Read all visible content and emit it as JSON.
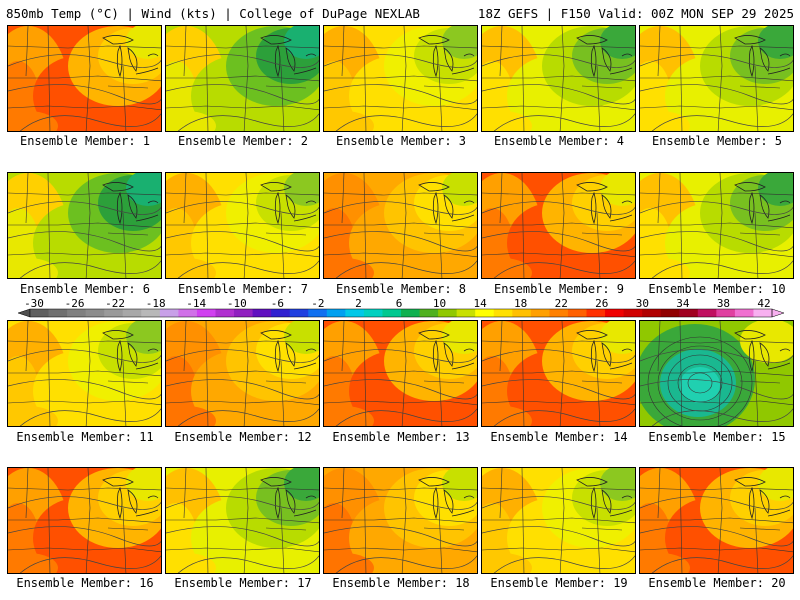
{
  "header": {
    "left": "850mb Temp (°C) | Wind (kts) | College of DuPage NEXLAB",
    "right": "18Z GEFS | F150 Valid: 00Z MON SEP 29 2025"
  },
  "panel_label_prefix": "Ensemble Member:",
  "members": [
    {
      "number": "1",
      "dominant": "warm-west",
      "accent": "#ff6a00"
    },
    {
      "number": "2",
      "dominant": "cool-north",
      "accent": "#1aa03c"
    },
    {
      "number": "3",
      "dominant": "mild",
      "accent": "#ffb000"
    },
    {
      "number": "4",
      "dominant": "mild-cool",
      "accent": "#e6e600"
    },
    {
      "number": "5",
      "dominant": "mild-cool",
      "accent": "#ffb000"
    },
    {
      "number": "6",
      "dominant": "cool-north",
      "accent": "#3fae3a"
    },
    {
      "number": "7",
      "dominant": "mild",
      "accent": "#ffd000"
    },
    {
      "number": "8",
      "dominant": "warm",
      "accent": "#ff8c00"
    },
    {
      "number": "9",
      "dominant": "warm-west",
      "accent": "#ff3c00"
    },
    {
      "number": "10",
      "dominant": "mild-cool",
      "accent": "#ffb000"
    },
    {
      "number": "11",
      "dominant": "mild",
      "accent": "#ffb000"
    },
    {
      "number": "12",
      "dominant": "warm",
      "accent": "#ff8c00"
    },
    {
      "number": "13",
      "dominant": "warm-west",
      "accent": "#ff5a00"
    },
    {
      "number": "14",
      "dominant": "warm-west",
      "accent": "#ff2a00"
    },
    {
      "number": "15",
      "dominant": "low-center",
      "accent": "#19c8a0"
    },
    {
      "number": "16",
      "dominant": "warm-west",
      "accent": "#ff6a00"
    },
    {
      "number": "17",
      "dominant": "mild-cool",
      "accent": "#ffd000"
    },
    {
      "number": "18",
      "dominant": "warm",
      "accent": "#ff9a00"
    },
    {
      "number": "19",
      "dominant": "mild",
      "accent": "#ffc800"
    },
    {
      "number": "20",
      "dominant": "warm-west",
      "accent": "#ff7a00"
    }
  ],
  "colorbar": {
    "labels": [
      "-30",
      "-26",
      "-22",
      "-18",
      "-14",
      "-10",
      "-6",
      "-2",
      "2",
      "6",
      "10",
      "14",
      "18",
      "22",
      "26",
      "30",
      "34",
      "38",
      "42"
    ],
    "colors": [
      "#606060",
      "#707070",
      "#808080",
      "#8c8c8c",
      "#9a9a9a",
      "#a8a8a8",
      "#b8b8b8",
      "#c8a0e8",
      "#d070e8",
      "#d040f0",
      "#b030d0",
      "#9020c0",
      "#6010c0",
      "#3020d0",
      "#2040e0",
      "#1070f0",
      "#00a0f0",
      "#00c8e8",
      "#00d0c0",
      "#00c890",
      "#10b050",
      "#50b020",
      "#90c800",
      "#c8e000",
      "#ffff00",
      "#ffe000",
      "#ffc000",
      "#ffa000",
      "#ff8000",
      "#ff6000",
      "#ff3000",
      "#f00000",
      "#d00000",
      "#b00000",
      "#900000",
      "#a00020",
      "#c01060",
      "#e040a0",
      "#f070d0",
      "#f8b0f0"
    ]
  }
}
